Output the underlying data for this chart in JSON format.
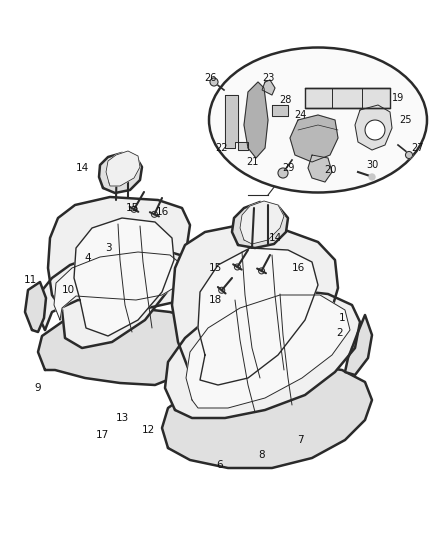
{
  "bg_color": "#ffffff",
  "line_color": "#2a2a2a",
  "fill_light": "#f0f0f0",
  "fill_mid": "#e0e0e0",
  "fill_dark": "#c8c8c8",
  "fig_width": 4.38,
  "fig_height": 5.33,
  "dpi": 100
}
